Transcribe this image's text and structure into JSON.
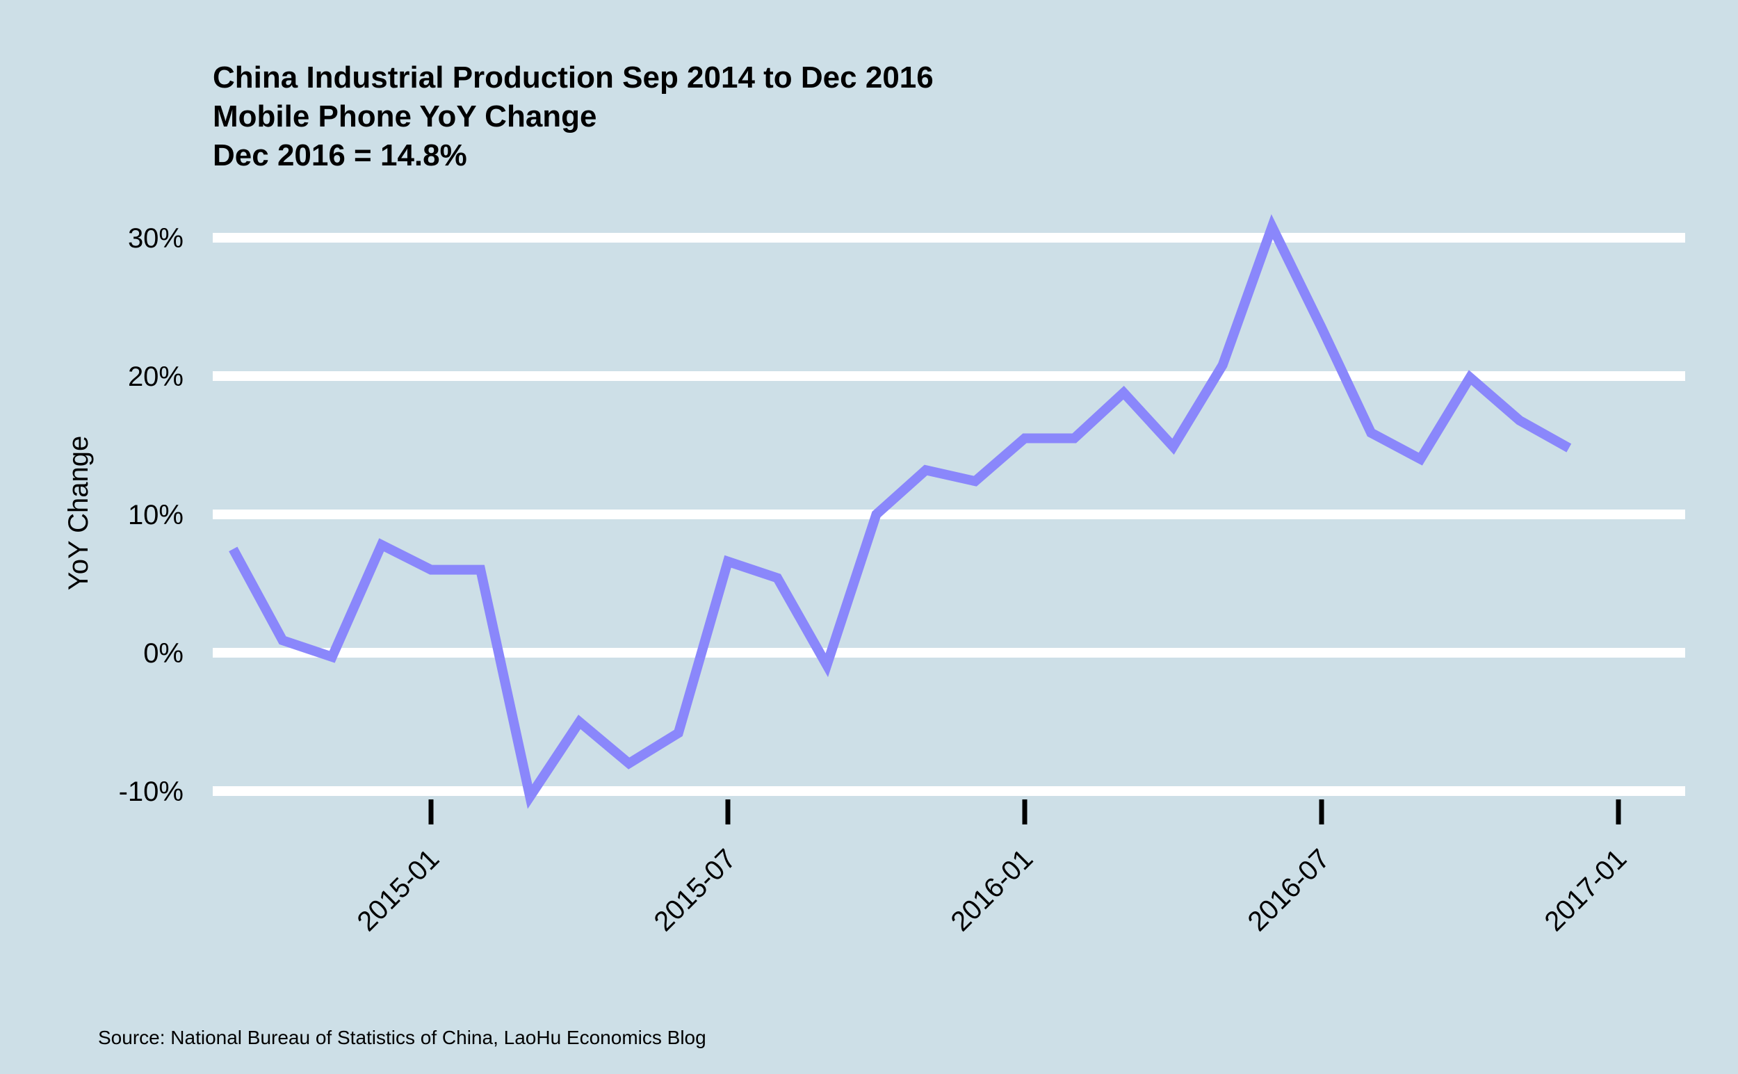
{
  "chart_data": {
    "type": "line",
    "title": [
      "China Industrial Production Sep 2014 to Dec 2016",
      "Mobile Phone YoY Change",
      "Dec 2016 = 14.8%"
    ],
    "ylabel": "YoY Change",
    "xlabel": "",
    "ylim": [
      -10,
      30
    ],
    "yticks": [
      -10,
      0,
      10,
      20,
      30
    ],
    "ytick_labels": [
      "-10%",
      "0%",
      "10%",
      "20%",
      "30%"
    ],
    "xticks": [
      "2015-01",
      "2015-07",
      "2016-01",
      "2016-07",
      "2017-01"
    ],
    "grid": "horizontal",
    "line_color": "#8a87fb",
    "series": [
      {
        "x": [
          "2014-09",
          "2014-10",
          "2014-11",
          "2014-12",
          "2015-01",
          "2015-02",
          "2015-03",
          "2015-04",
          "2015-05",
          "2015-06",
          "2015-07",
          "2015-08",
          "2015-09",
          "2015-10",
          "2015-11",
          "2015-12",
          "2016-01",
          "2016-02",
          "2016-03",
          "2016-04",
          "2016-05",
          "2016-06",
          "2016-07",
          "2016-08",
          "2016-09",
          "2016-10",
          "2016-11",
          "2016-12"
        ],
        "values": [
          7.5,
          0.9,
          -0.3,
          7.8,
          6.0,
          6.0,
          -10.4,
          -5.0,
          -8.0,
          -5.8,
          6.6,
          5.4,
          -0.9,
          10.0,
          13.2,
          12.4,
          15.5,
          15.5,
          18.8,
          14.9,
          20.8,
          30.8,
          23.5,
          15.9,
          14.0,
          19.9,
          16.8,
          14.8
        ]
      }
    ],
    "source": "Source: National Bureau of Statistics of China, LaoHu Economics Blog"
  }
}
